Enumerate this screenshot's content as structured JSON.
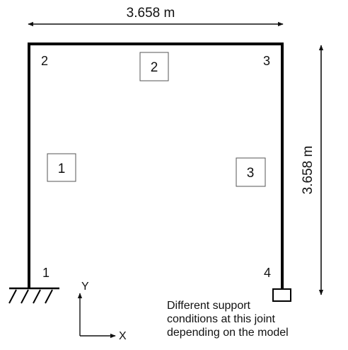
{
  "dimensions": {
    "width_label": "3.658 m",
    "height_label": "3.658 m"
  },
  "joints": {
    "j1": "1",
    "j2": "2",
    "j3": "3",
    "j4": "4"
  },
  "members": {
    "m1": "1",
    "m2": "2",
    "m3": "3"
  },
  "axes": {
    "y_label": "Y",
    "x_label": "X"
  },
  "support_note": {
    "line1": "Different support",
    "line2": "conditions at this joint",
    "line3": "depending on the model"
  }
}
